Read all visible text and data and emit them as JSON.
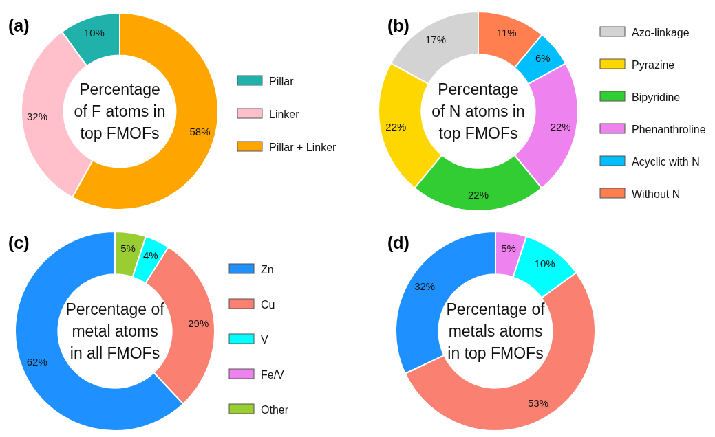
{
  "chart_data": [
    {
      "type": "donut",
      "title": "(a)",
      "annotations": [
        "Percentage\nof F atoms in\ntop FMOFs"
      ],
      "categories": [
        "Pillar",
        "Linker",
        "Pillar + Linker"
      ],
      "values": [
        10,
        32,
        58
      ],
      "value_labels": [
        "10%",
        "32%",
        "58%"
      ],
      "colors": [
        "#20b2aa",
        "#ffc0cb",
        "#ffa500"
      ],
      "legend": "right"
    },
    {
      "type": "donut",
      "title": "(b)",
      "annotations": [
        "Percentage\nof N atoms in\ntop FMOFs"
      ],
      "categories": [
        "Azo-linkage",
        "Pyrazine",
        "Bipyridine",
        "Phenanthroline",
        "Acyclic with N",
        "Without N"
      ],
      "values": [
        17,
        22,
        22,
        22,
        6,
        11
      ],
      "value_labels": [
        "17%",
        "22%",
        "22%",
        "22%",
        "6%",
        "11%"
      ],
      "colors": [
        "#d3d3d3",
        "#ffd700",
        "#32cd32",
        "#ee82ee",
        "#00bfff",
        "#ff7f50"
      ],
      "legend": "right"
    },
    {
      "type": "donut",
      "title": "(c)",
      "annotations": [
        "Percentage of\nmetal atoms\nin all FMOFs"
      ],
      "categories": [
        "Zn",
        "Cu",
        "V",
        "Fe/V",
        "Other"
      ],
      "values": [
        62,
        29,
        4,
        0,
        5
      ],
      "value_labels": [
        "62%",
        "29%",
        "4%",
        null,
        "5%"
      ],
      "colors": [
        "#1e90ff",
        "#fa8072",
        "#00ffff",
        "#ee82ee",
        "#9acd32"
      ],
      "legend": "right"
    },
    {
      "type": "donut",
      "title": "(d)",
      "annotations": [
        "Percentage of\nmetals atoms\nin top FMOFs"
      ],
      "categories": [
        null,
        null,
        null,
        null
      ],
      "values": [
        32,
        53,
        10,
        5
      ],
      "value_labels": [
        "32%",
        "53%",
        "10%",
        "5%"
      ],
      "colors": [
        "#1e90ff",
        "#fa8072",
        "#00ffff",
        "#ee82ee"
      ],
      "legend": false
    }
  ]
}
